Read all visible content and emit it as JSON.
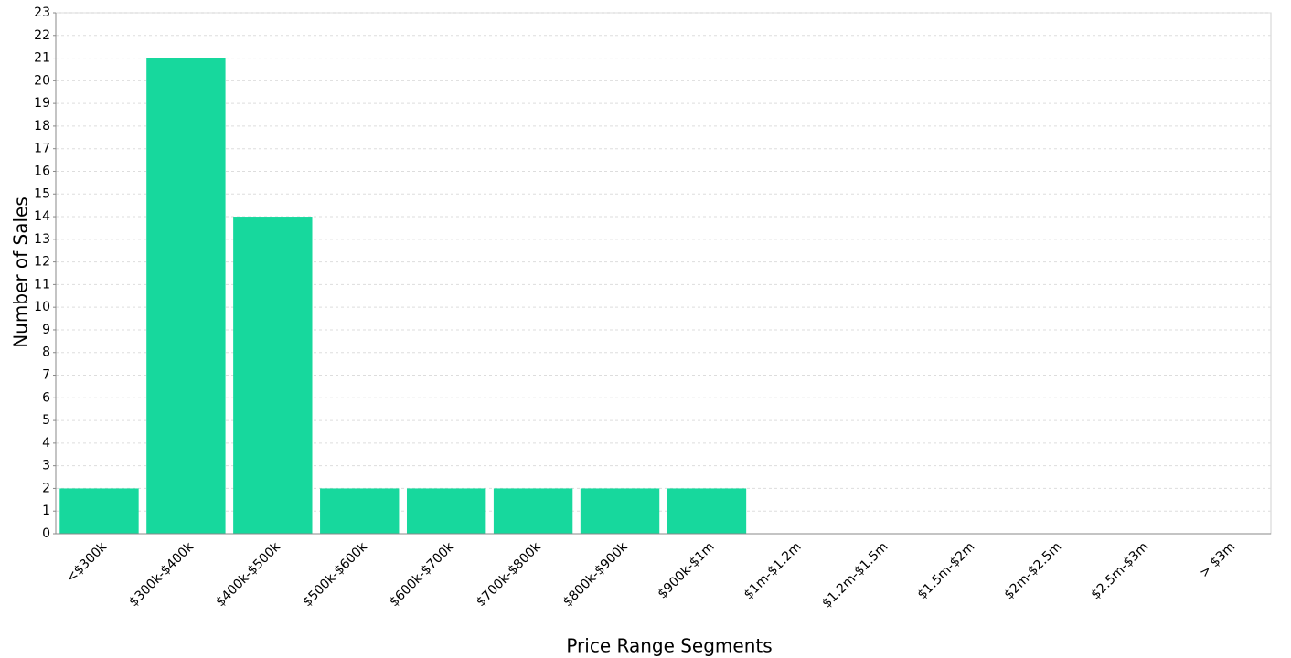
{
  "chart_data": {
    "type": "bar",
    "x_label": "Price Range Segments",
    "y_label": "Number of Sales",
    "categories": [
      "<$300k",
      "$300k-$400k",
      "$400k-$500k",
      "$500k-$600k",
      "$600k-$700k",
      "$700k-$800k",
      "$800k-$900k",
      "$900k-$1m",
      "$1m-$1.2m",
      "$1.2m-$1.5m",
      "$1.5m-$2m",
      "$2m-$2.5m",
      "$2.5m-$3m",
      "> $3m"
    ],
    "values": [
      2,
      21,
      14,
      2,
      2,
      2,
      2,
      2,
      0,
      0,
      0,
      0,
      0,
      0
    ],
    "color": "#17d89d",
    "ylim": [
      0,
      23
    ],
    "yticks": [
      0,
      1,
      2,
      3,
      4,
      5,
      6,
      7,
      8,
      9,
      10,
      11,
      12,
      13,
      14,
      15,
      16,
      17,
      18,
      19,
      20,
      21,
      22,
      23
    ],
    "grid": true
  }
}
